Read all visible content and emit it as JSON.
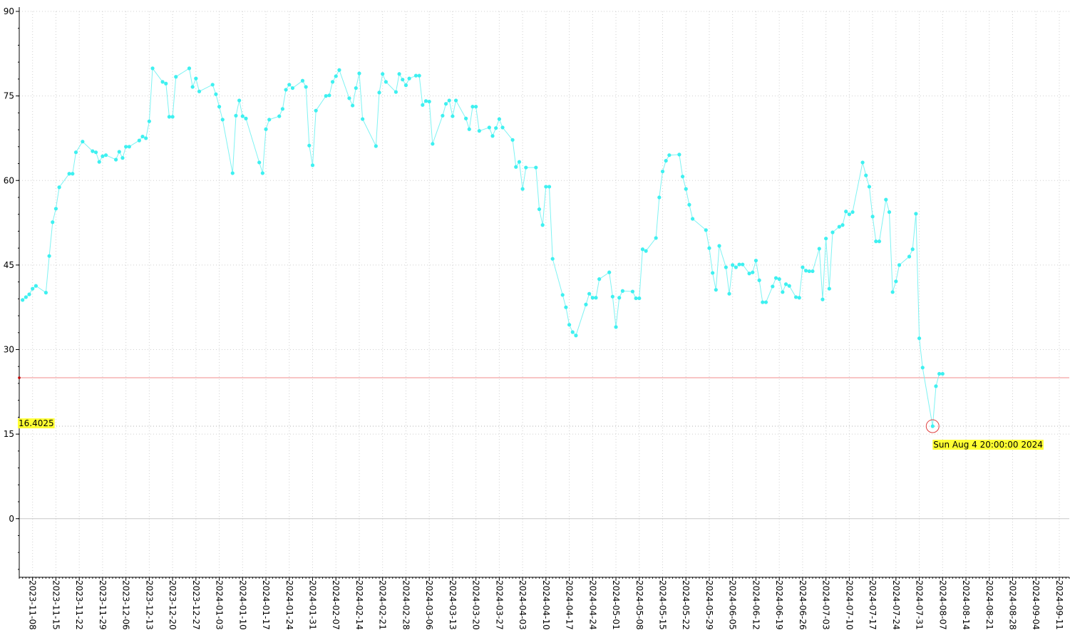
{
  "chart_data": {
    "type": "line",
    "color": "#7ff3f3",
    "marker_color": "#3ef0f0",
    "x": [
      "2023-11-05",
      "2023-11-06",
      "2023-11-07",
      "2023-11-08",
      "2023-11-09",
      "2023-11-12",
      "2023-11-13",
      "2023-11-14",
      "2023-11-15",
      "2023-11-16",
      "2023-11-19",
      "2023-11-20",
      "2023-11-21",
      "2023-11-23",
      "2023-11-26",
      "2023-11-27",
      "2023-11-28",
      "2023-11-29",
      "2023-11-30",
      "2023-12-03",
      "2023-12-04",
      "2023-12-05",
      "2023-12-06",
      "2023-12-07",
      "2023-12-10",
      "2023-12-11",
      "2023-12-12",
      "2023-12-13",
      "2023-12-14",
      "2023-12-17",
      "2023-12-18",
      "2023-12-19",
      "2023-12-20",
      "2023-12-21",
      "2023-12-25",
      "2023-12-26",
      "2023-12-27",
      "2023-12-28",
      "2024-01-01",
      "2024-01-02",
      "2024-01-03",
      "2024-01-04",
      "2024-01-07",
      "2024-01-08",
      "2024-01-09",
      "2024-01-10",
      "2024-01-11",
      "2024-01-15",
      "2024-01-16",
      "2024-01-17",
      "2024-01-18",
      "2024-01-21",
      "2024-01-22",
      "2024-01-23",
      "2024-01-24",
      "2024-01-25",
      "2024-01-28",
      "2024-01-29",
      "2024-01-30",
      "2024-01-31",
      "2024-02-01",
      "2024-02-04",
      "2024-02-05",
      "2024-02-06",
      "2024-02-07",
      "2024-02-08",
      "2024-02-11",
      "2024-02-12",
      "2024-02-13",
      "2024-02-14",
      "2024-02-15",
      "2024-02-19",
      "2024-02-20",
      "2024-02-21",
      "2024-02-22",
      "2024-02-25",
      "2024-02-26",
      "2024-02-27",
      "2024-02-28",
      "2024-02-29",
      "2024-03-02",
      "2024-03-03",
      "2024-03-04",
      "2024-03-05",
      "2024-03-06",
      "2024-03-07",
      "2024-03-10",
      "2024-03-11",
      "2024-03-12",
      "2024-03-13",
      "2024-03-14",
      "2024-03-17",
      "2024-03-18",
      "2024-03-19",
      "2024-03-20",
      "2024-03-21",
      "2024-03-24",
      "2024-03-25",
      "2024-03-26",
      "2024-03-27",
      "2024-03-28",
      "2024-03-31",
      "2024-04-01",
      "2024-04-02",
      "2024-04-03",
      "2024-04-04",
      "2024-04-07",
      "2024-04-08",
      "2024-04-09",
      "2024-04-10",
      "2024-04-11",
      "2024-04-12",
      "2024-04-15",
      "2024-04-16",
      "2024-04-17",
      "2024-04-18",
      "2024-04-19",
      "2024-04-22",
      "2024-04-23",
      "2024-04-24",
      "2024-04-25",
      "2024-04-26",
      "2024-04-29",
      "2024-04-30",
      "2024-05-01",
      "2024-05-02",
      "2024-05-03",
      "2024-05-06",
      "2024-05-07",
      "2024-05-08",
      "2024-05-09",
      "2024-05-10",
      "2024-05-13",
      "2024-05-14",
      "2024-05-15",
      "2024-05-16",
      "2024-05-17",
      "2024-05-20",
      "2024-05-21",
      "2024-05-22",
      "2024-05-23",
      "2024-05-24",
      "2024-05-28",
      "2024-05-29",
      "2024-05-30",
      "2024-05-31",
      "2024-06-01",
      "2024-06-03",
      "2024-06-04",
      "2024-06-05",
      "2024-06-06",
      "2024-06-07",
      "2024-06-08",
      "2024-06-10",
      "2024-06-11",
      "2024-06-12",
      "2024-06-13",
      "2024-06-14",
      "2024-06-15",
      "2024-06-17",
      "2024-06-18",
      "2024-06-19",
      "2024-06-20",
      "2024-06-21",
      "2024-06-22",
      "2024-06-24",
      "2024-06-25",
      "2024-06-26",
      "2024-06-27",
      "2024-06-28",
      "2024-06-29",
      "2024-07-01",
      "2024-07-02",
      "2024-07-03",
      "2024-07-04",
      "2024-07-05",
      "2024-07-07",
      "2024-07-08",
      "2024-07-09",
      "2024-07-10",
      "2024-07-11",
      "2024-07-14",
      "2024-07-15",
      "2024-07-16",
      "2024-07-17",
      "2024-07-18",
      "2024-07-19",
      "2024-07-21",
      "2024-07-22",
      "2024-07-23",
      "2024-07-24",
      "2024-07-25",
      "2024-07-28",
      "2024-07-29",
      "2024-07-30",
      "2024-07-31",
      "2024-08-01",
      "2024-08-04",
      "2024-08-05",
      "2024-08-06",
      "2024-08-07"
    ],
    "values": [
      38.8,
      39.3,
      39.8,
      40.8,
      41.3,
      40.1,
      46.6,
      52.6,
      55.0,
      58.8,
      61.2,
      61.2,
      65.0,
      66.9,
      65.2,
      65.0,
      63.3,
      64.3,
      64.5,
      63.7,
      65.1,
      64.0,
      66.0,
      66.0,
      67.1,
      67.8,
      67.5,
      70.5,
      79.9,
      77.5,
      77.2,
      71.3,
      71.3,
      78.4,
      79.9,
      76.6,
      78.1,
      75.8,
      77.0,
      75.3,
      73.1,
      70.8,
      61.3,
      71.5,
      74.2,
      71.4,
      71.0,
      63.2,
      61.3,
      69.1,
      70.8,
      71.4,
      72.7,
      76.1,
      77.0,
      76.4,
      77.7,
      76.6,
      66.2,
      62.7,
      72.4,
      75.0,
      75.1,
      77.5,
      78.5,
      79.6,
      74.6,
      73.3,
      76.4,
      79.0,
      70.9,
      66.1,
      75.6,
      78.9,
      77.5,
      75.7,
      78.9,
      77.9,
      76.9,
      78.1,
      78.6,
      78.6,
      73.4,
      74.1,
      74.0,
      66.5,
      71.5,
      73.6,
      74.2,
      71.4,
      74.2,
      71.0,
      69.1,
      73.1,
      73.1,
      68.8,
      69.4,
      67.9,
      69.3,
      70.9,
      69.4,
      67.2,
      62.4,
      63.3,
      58.5,
      62.3,
      62.3,
      54.9,
      52.1,
      58.9,
      58.9,
      46.1,
      39.7,
      37.5,
      34.4,
      33.1,
      32.5,
      38.0,
      39.9,
      39.2,
      39.2,
      42.5,
      43.7,
      39.4,
      34.0,
      39.2,
      40.4,
      40.3,
      39.1,
      39.1,
      47.8,
      47.5,
      49.8,
      57.0,
      61.6,
      63.5,
      64.5,
      64.6,
      60.7,
      58.5,
      55.7,
      53.2,
      51.2,
      48.0,
      43.6,
      40.6,
      48.4,
      44.6,
      39.9,
      45.0,
      44.6,
      45.1,
      45.1,
      43.5,
      43.7,
      45.8,
      42.3,
      38.4,
      38.4,
      41.2,
      42.7,
      42.5,
      40.2,
      41.6,
      41.3,
      39.3,
      39.2,
      44.6,
      44.0,
      43.9,
      43.9,
      47.9,
      38.9,
      49.7,
      40.8,
      50.8,
      51.8,
      52.1,
      54.5,
      54.0,
      54.4,
      63.2,
      60.9,
      58.9,
      53.6,
      49.2,
      49.2,
      56.6,
      54.4,
      40.2,
      42.1,
      45.0,
      46.5,
      47.8,
      54.1,
      32.0,
      26.8,
      16.4025,
      23.5,
      25.7,
      25.7
    ],
    "xlim": [
      "2023-11-04",
      "2024-09-14"
    ],
    "xticks": [
      "2023-11-08",
      "2023-11-15",
      "2023-11-22",
      "2023-11-29",
      "2023-12-06",
      "2023-12-13",
      "2023-12-20",
      "2023-12-27",
      "2024-01-03",
      "2024-01-10",
      "2024-01-17",
      "2024-01-24",
      "2024-01-31",
      "2024-02-07",
      "2024-02-14",
      "2024-02-21",
      "2024-02-28",
      "2024-03-06",
      "2024-03-13",
      "2024-03-20",
      "2024-03-27",
      "2024-04-03",
      "2024-04-10",
      "2024-04-17",
      "2024-04-24",
      "2024-05-01",
      "2024-05-08",
      "2024-05-15",
      "2024-05-22",
      "2024-05-29",
      "2024-06-05",
      "2024-06-12",
      "2024-06-19",
      "2024-06-26",
      "2024-07-03",
      "2024-07-10",
      "2024-07-17",
      "2024-07-24",
      "2024-07-31",
      "2024-08-07",
      "2024-08-14",
      "2024-08-21",
      "2024-08-28",
      "2024-09-04",
      "2024-09-11"
    ],
    "ylim": [
      -10.4,
      90
    ],
    "yticks": [
      0,
      15,
      30,
      45,
      60,
      75,
      90
    ],
    "grid": true,
    "reference_line": {
      "value": 25,
      "color": "#f28b8b"
    },
    "highlight": {
      "x": "2024-08-04",
      "y": 16.4025,
      "label": "Sun Aug 4 20:00:00 2024",
      "color": "#e04040"
    }
  }
}
